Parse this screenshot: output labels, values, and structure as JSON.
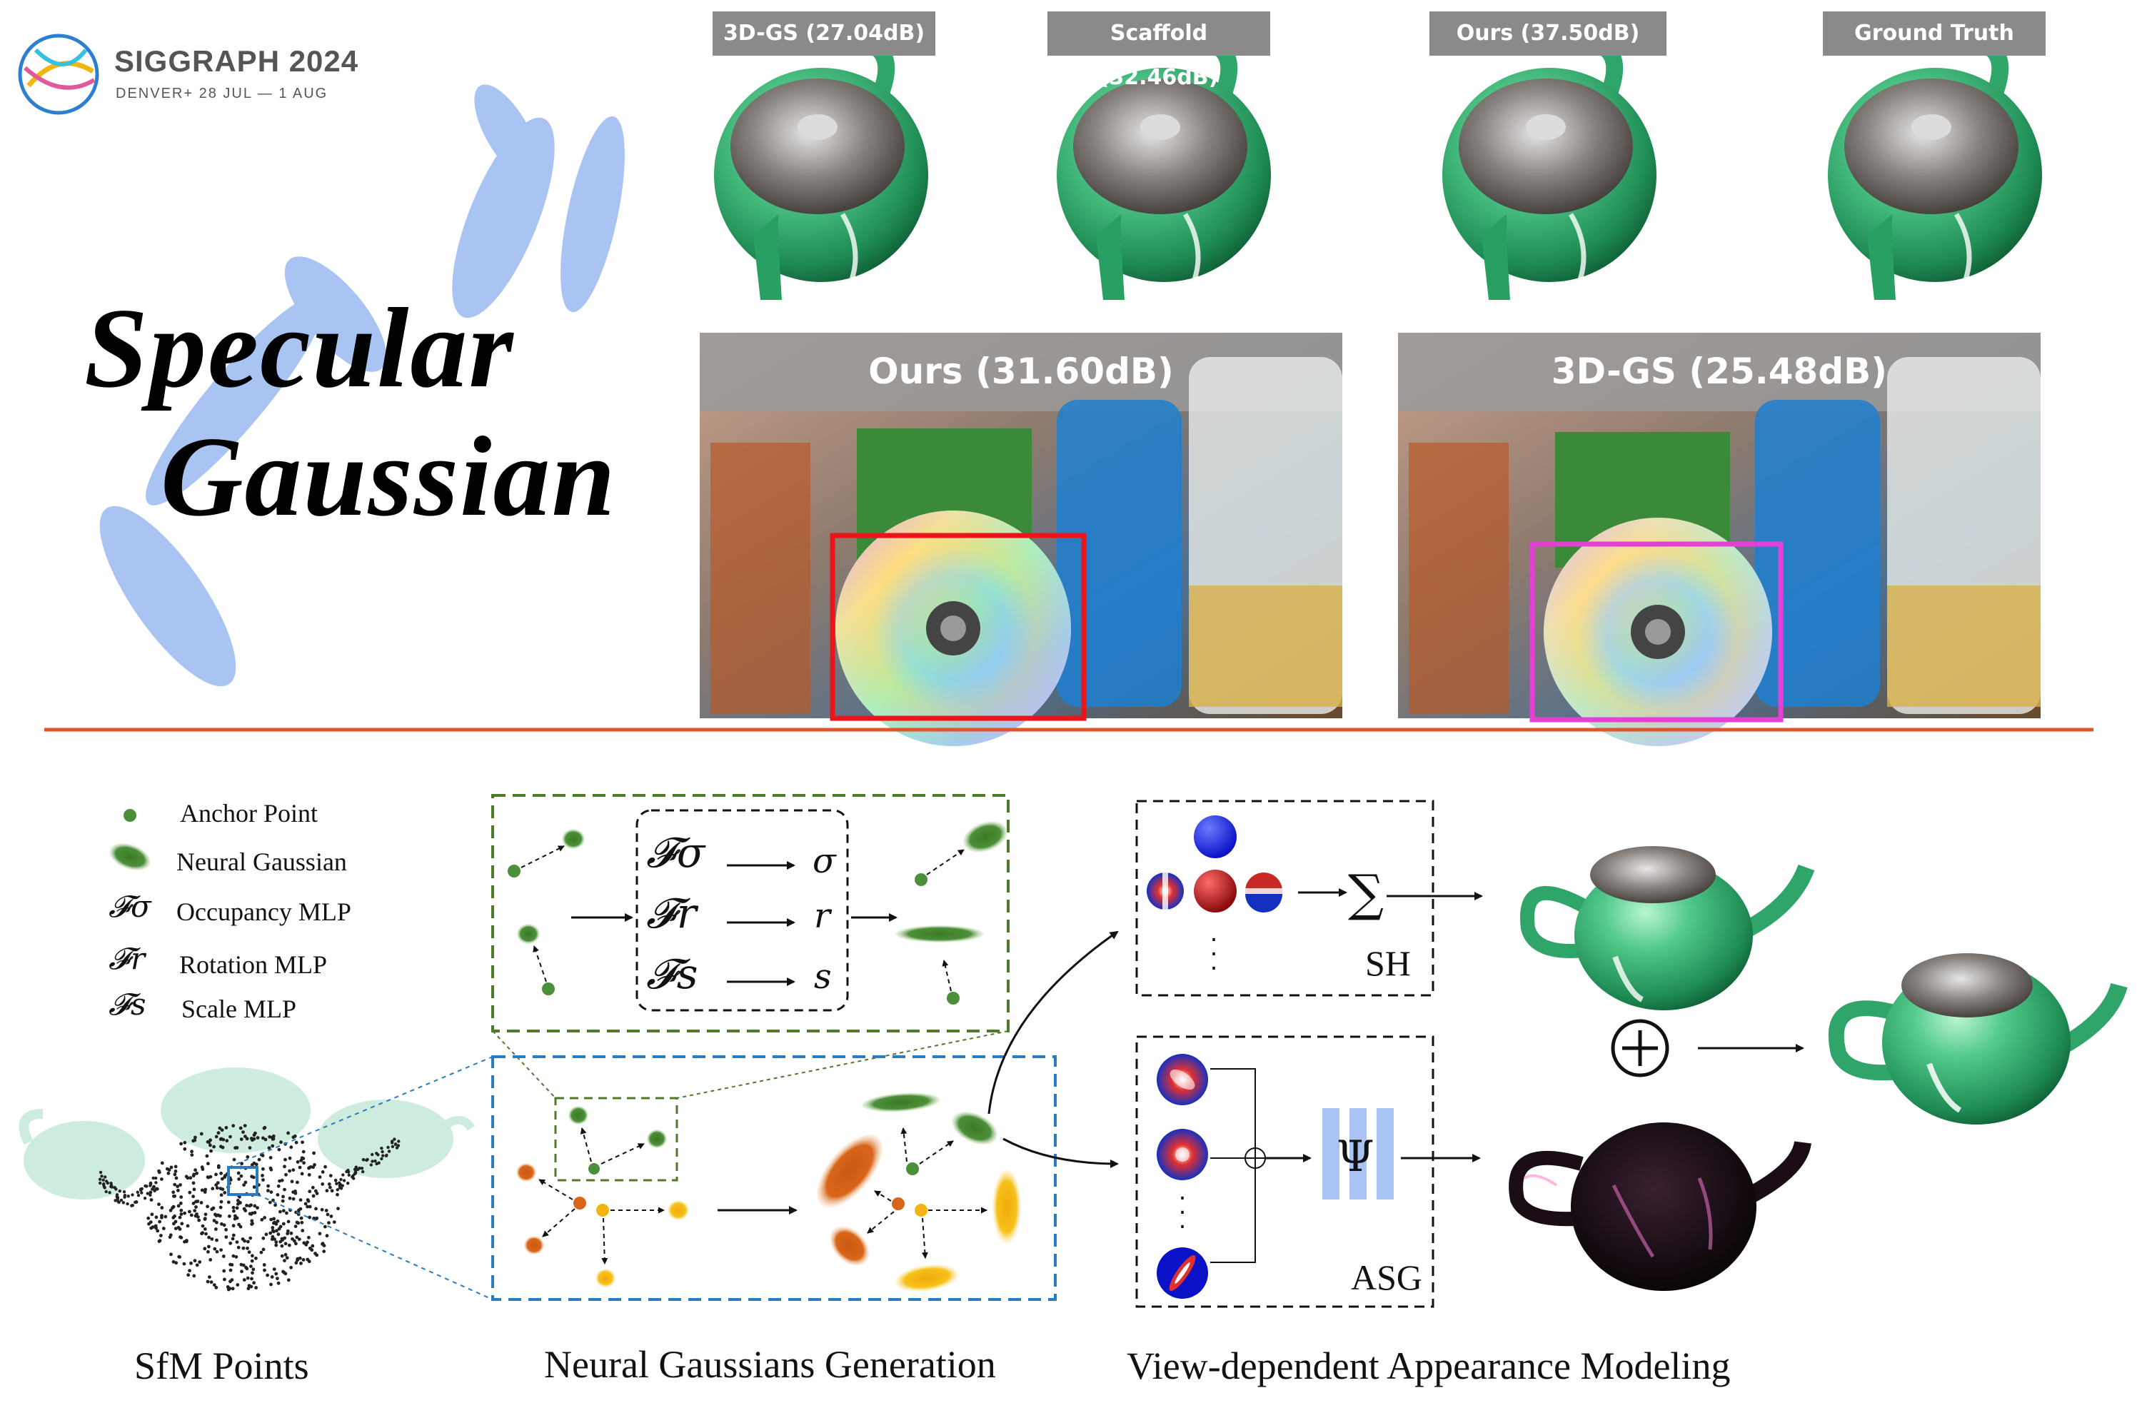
{
  "conference": {
    "name": "SIGGRAPH 2024",
    "location_date": "DENVER+ 28 JUL — 1 AUG"
  },
  "title": {
    "line1": "Specular",
    "line2": "Gaussian"
  },
  "teapot_comparison": [
    {
      "label": "3D-GS (27.04dB)"
    },
    {
      "label": "Scaffold (32.46dB)"
    },
    {
      "label": "Ours (37.50dB)"
    },
    {
      "label": "Ground Truth"
    }
  ],
  "real_scene_comparison": [
    {
      "label": "Ours (31.60dB)",
      "highlight_color": "#e8161b"
    },
    {
      "label": "3D-GS (25.48dB)",
      "highlight_color": "#e63fd8"
    }
  ],
  "legend": [
    {
      "symbol": "",
      "text": "Anchor Point",
      "icon": "anchor-dot-icon"
    },
    {
      "symbol": "",
      "text": "Neural Gaussian",
      "icon": "neural-gaussian-icon"
    },
    {
      "symbol": "𝓕σ",
      "text": "Occupancy MLP"
    },
    {
      "symbol": "𝓕r",
      "text": "Rotation MLP"
    },
    {
      "symbol": "𝓕s",
      "text": "Scale MLP"
    }
  ],
  "mlp_box": [
    {
      "fn": "𝓕σ",
      "out": "σ"
    },
    {
      "fn": "𝓕r",
      "out": "r"
    },
    {
      "fn": "𝓕s",
      "out": "s"
    }
  ],
  "sh_box": {
    "sum_symbol": "∑",
    "label": "SH"
  },
  "asg_box": {
    "mlp_symbol": "Ψ",
    "label": "ASG",
    "plus_symbol": "⊕"
  },
  "captions": {
    "sfm": "SfM Points",
    "generation": "Neural Gaussians Generation",
    "appearance": "View-dependent Appearance Modeling"
  },
  "colors": {
    "divider": "#e0552a",
    "green_dash": "#4f7a2a",
    "blue_dash": "#2a7bbf",
    "anchor_green": "#4c8f3a",
    "orange": "#d9651a",
    "yellow": "#f2b50f",
    "teapot_green": "#3fb87a",
    "petal_blue": "#a9c4f2"
  }
}
